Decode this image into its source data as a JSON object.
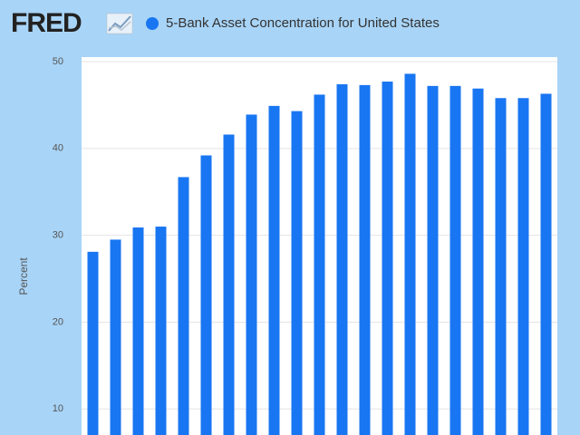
{
  "header": {
    "logo": "FRED"
  },
  "chart_data": {
    "type": "bar",
    "categories": [
      null,
      null,
      null,
      null,
      null,
      null,
      null,
      null,
      null,
      null,
      null,
      null,
      null,
      null,
      null,
      null,
      null,
      null,
      null,
      null,
      null
    ],
    "series": [
      {
        "name": "5-Bank Asset Concentration for United States",
        "color": "#1976f2",
        "values": [
          28.1,
          29.5,
          30.9,
          31.0,
          36.7,
          39.2,
          41.6,
          43.9,
          44.9,
          44.3,
          46.2,
          47.4,
          47.3,
          47.7,
          48.6,
          47.2,
          47.2,
          46.9,
          45.8,
          45.8,
          46.3
        ]
      }
    ],
    "y_label": "Percent",
    "ylim": [
      7,
      50
    ],
    "yticks": [
      10,
      20,
      30,
      40,
      50
    ],
    "grid": true
  }
}
